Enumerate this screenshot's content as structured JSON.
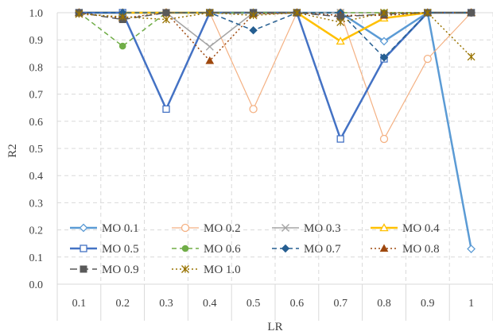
{
  "chart_data": {
    "type": "line",
    "xlabel": "LR",
    "ylabel": "R2",
    "ylim": [
      0,
      1
    ],
    "yticks": [
      "0.0",
      "0.1",
      "0.2",
      "0.3",
      "0.4",
      "0.5",
      "0.6",
      "0.7",
      "0.8",
      "0.9",
      "1.0"
    ],
    "categories": [
      "0.1",
      "0.2",
      "0.3",
      "0.4",
      "0.5",
      "0.6",
      "0.7",
      "0.8",
      "0.9",
      "1"
    ],
    "grid": true,
    "legend_position": "lower-left-inside",
    "series": [
      {
        "name": "MO 0.1",
        "color": "#5b9bd5",
        "dash": "solid",
        "width": 2.5,
        "marker": "diamond-open",
        "values": [
          1.0,
          1.0,
          1.0,
          1.0,
          1.0,
          1.0,
          1.0,
          0.895,
          1.0,
          0.13
        ]
      },
      {
        "name": "MO 0.2",
        "color": "#f4b183",
        "dash": "solid",
        "width": 1.2,
        "marker": "circle-open",
        "values": [
          1.0,
          1.0,
          1.0,
          1.0,
          0.645,
          1.0,
          1.0,
          0.535,
          0.83,
          1.0
        ]
      },
      {
        "name": "MO 0.3",
        "color": "#a5a5a5",
        "dash": "solid",
        "width": 1.5,
        "marker": "x",
        "values": [
          1.0,
          1.0,
          1.0,
          0.875,
          1.0,
          1.0,
          1.0,
          1.0,
          1.0,
          1.0
        ]
      },
      {
        "name": "MO 0.4",
        "color": "#ffc000",
        "dash": "solid",
        "width": 2.5,
        "marker": "triangle-open",
        "values": [
          1.0,
          1.0,
          1.0,
          1.0,
          1.0,
          1.0,
          0.895,
          0.98,
          1.0,
          1.0
        ]
      },
      {
        "name": "MO 0.5",
        "color": "#4472c4",
        "dash": "solid",
        "width": 2.5,
        "marker": "square-open",
        "values": [
          1.0,
          1.0,
          0.645,
          1.0,
          1.0,
          1.0,
          0.535,
          0.83,
          1.0,
          1.0
        ]
      },
      {
        "name": "MO 0.6",
        "color": "#70ad47",
        "dash": "dash",
        "width": 1.5,
        "marker": "circle",
        "values": [
          1.0,
          0.877,
          1.0,
          1.0,
          1.0,
          1.0,
          1.0,
          1.0,
          1.0,
          1.0
        ]
      },
      {
        "name": "MO 0.7",
        "color": "#255e91",
        "dash": "dash",
        "width": 1.5,
        "marker": "diamond",
        "values": [
          1.0,
          1.0,
          1.0,
          1.0,
          0.935,
          1.0,
          1.0,
          0.835,
          1.0,
          1.0
        ]
      },
      {
        "name": "MO 0.8",
        "color": "#9e480e",
        "dash": "dot",
        "width": 1.5,
        "marker": "triangle",
        "values": [
          1.0,
          0.98,
          1.0,
          0.823,
          0.995,
          1.0,
          0.99,
          0.99,
          1.0,
          1.0
        ]
      },
      {
        "name": "MO 0.9",
        "color": "#595959",
        "dash": "longdash",
        "width": 1.5,
        "marker": "square",
        "values": [
          1.0,
          0.975,
          1.0,
          1.0,
          1.0,
          1.0,
          0.985,
          0.995,
          1.0,
          1.0
        ]
      },
      {
        "name": "MO 1.0",
        "color": "#997300",
        "dash": "dot",
        "width": 1.5,
        "marker": "star",
        "values": [
          0.995,
          0.985,
          0.975,
          1.0,
          0.99,
          1.0,
          0.965,
          1.0,
          1.0,
          0.838
        ]
      }
    ]
  }
}
